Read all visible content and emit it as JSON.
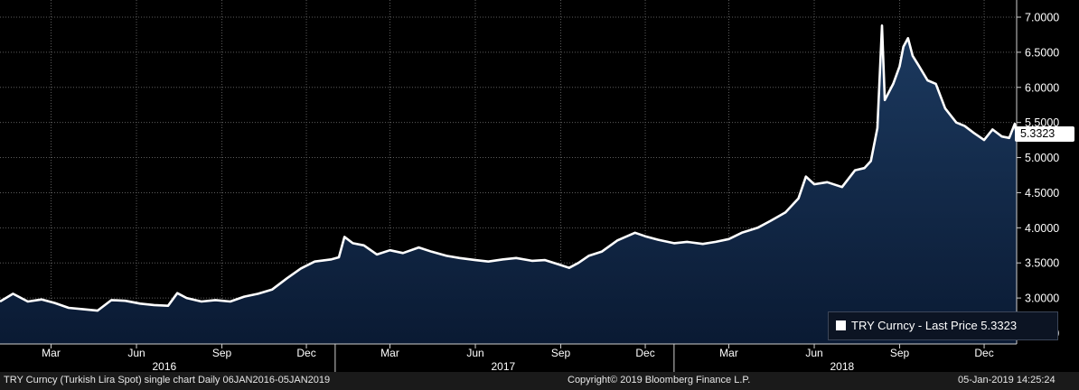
{
  "chart_data": {
    "type": "area",
    "title": "TRY Curncy (Turkish Lira Spot) single chart",
    "series": [
      {
        "name": "TRY Curncy - Last Price 5.3323",
        "last_value": 5.3323
      }
    ],
    "ylim": [
      2.4,
      7.2
    ],
    "y_ticks": [
      2.5,
      3.0,
      3.5,
      4.0,
      4.5,
      5.0,
      5.5,
      6.0,
      6.5,
      7.0
    ],
    "y_tick_labels": [
      "2.5000",
      "3.0000",
      "3.5000",
      "4.0000",
      "4.5000",
      "5.0000",
      "5.5000",
      "6.0000",
      "6.5000",
      "7.0000"
    ],
    "x_range": [
      "2016-01-06",
      "2019-01-05"
    ],
    "month_ticks": [
      {
        "date": "2016-03-01",
        "label": "Mar"
      },
      {
        "date": "2016-06-01",
        "label": "Jun"
      },
      {
        "date": "2016-09-01",
        "label": "Sep"
      },
      {
        "date": "2016-12-01",
        "label": "Dec"
      },
      {
        "date": "2017-03-01",
        "label": "Mar"
      },
      {
        "date": "2017-06-01",
        "label": "Jun"
      },
      {
        "date": "2017-09-01",
        "label": "Sep"
      },
      {
        "date": "2017-12-01",
        "label": "Dec"
      },
      {
        "date": "2018-03-01",
        "label": "Mar"
      },
      {
        "date": "2018-06-01",
        "label": "Jun"
      },
      {
        "date": "2018-09-01",
        "label": "Sep"
      },
      {
        "date": "2018-12-01",
        "label": "Dec"
      }
    ],
    "year_ticks": [
      {
        "date": "2016-07-01",
        "label": "2016"
      },
      {
        "date": "2017-07-01",
        "label": "2017"
      },
      {
        "date": "2018-07-01",
        "label": "2018"
      }
    ],
    "year_separators": [
      "2017-01-01",
      "2018-01-01"
    ],
    "points": [
      [
        "2016-01-06",
        2.95
      ],
      [
        "2016-01-20",
        3.06
      ],
      [
        "2016-02-05",
        2.95
      ],
      [
        "2016-02-20",
        2.98
      ],
      [
        "2016-03-05",
        2.93
      ],
      [
        "2016-03-20",
        2.86
      ],
      [
        "2016-04-05",
        2.84
      ],
      [
        "2016-04-20",
        2.82
      ],
      [
        "2016-05-05",
        2.97
      ],
      [
        "2016-05-20",
        2.96
      ],
      [
        "2016-06-05",
        2.92
      ],
      [
        "2016-06-20",
        2.9
      ],
      [
        "2016-07-05",
        2.89
      ],
      [
        "2016-07-15",
        3.07
      ],
      [
        "2016-07-25",
        3.0
      ],
      [
        "2016-08-10",
        2.95
      ],
      [
        "2016-08-25",
        2.97
      ],
      [
        "2016-09-10",
        2.95
      ],
      [
        "2016-09-25",
        3.02
      ],
      [
        "2016-10-10",
        3.06
      ],
      [
        "2016-10-25",
        3.12
      ],
      [
        "2016-11-10",
        3.28
      ],
      [
        "2016-11-25",
        3.42
      ],
      [
        "2016-12-10",
        3.52
      ],
      [
        "2016-12-28",
        3.55
      ],
      [
        "2017-01-05",
        3.58
      ],
      [
        "2017-01-11",
        3.87
      ],
      [
        "2017-01-20",
        3.78
      ],
      [
        "2017-02-01",
        3.75
      ],
      [
        "2017-02-15",
        3.62
      ],
      [
        "2017-03-01",
        3.68
      ],
      [
        "2017-03-15",
        3.64
      ],
      [
        "2017-04-01",
        3.72
      ],
      [
        "2017-04-15",
        3.66
      ],
      [
        "2017-05-01",
        3.6
      ],
      [
        "2017-05-15",
        3.57
      ],
      [
        "2017-06-01",
        3.54
      ],
      [
        "2017-06-15",
        3.52
      ],
      [
        "2017-07-01",
        3.55
      ],
      [
        "2017-07-15",
        3.57
      ],
      [
        "2017-08-01",
        3.53
      ],
      [
        "2017-08-15",
        3.54
      ],
      [
        "2017-09-01",
        3.47
      ],
      [
        "2017-09-10",
        3.43
      ],
      [
        "2017-09-20",
        3.5
      ],
      [
        "2017-10-01",
        3.6
      ],
      [
        "2017-10-15",
        3.66
      ],
      [
        "2017-11-01",
        3.82
      ],
      [
        "2017-11-20",
        3.93
      ],
      [
        "2017-12-01",
        3.88
      ],
      [
        "2017-12-15",
        3.83
      ],
      [
        "2018-01-01",
        3.78
      ],
      [
        "2018-01-15",
        3.8
      ],
      [
        "2018-02-01",
        3.77
      ],
      [
        "2018-02-15",
        3.8
      ],
      [
        "2018-03-01",
        3.84
      ],
      [
        "2018-03-15",
        3.93
      ],
      [
        "2018-04-01",
        4.0
      ],
      [
        "2018-04-15",
        4.1
      ],
      [
        "2018-05-01",
        4.22
      ],
      [
        "2018-05-15",
        4.42
      ],
      [
        "2018-05-23",
        4.73
      ],
      [
        "2018-06-01",
        4.62
      ],
      [
        "2018-06-15",
        4.65
      ],
      [
        "2018-07-01",
        4.58
      ],
      [
        "2018-07-15",
        4.82
      ],
      [
        "2018-07-25",
        4.85
      ],
      [
        "2018-08-01",
        4.95
      ],
      [
        "2018-08-08",
        5.42
      ],
      [
        "2018-08-13",
        6.88
      ],
      [
        "2018-08-16",
        5.82
      ],
      [
        "2018-08-25",
        6.05
      ],
      [
        "2018-09-01",
        6.3
      ],
      [
        "2018-09-05",
        6.58
      ],
      [
        "2018-09-10",
        6.7
      ],
      [
        "2018-09-15",
        6.45
      ],
      [
        "2018-09-22",
        6.3
      ],
      [
        "2018-10-01",
        6.1
      ],
      [
        "2018-10-10",
        6.05
      ],
      [
        "2018-10-20",
        5.7
      ],
      [
        "2018-11-01",
        5.5
      ],
      [
        "2018-11-10",
        5.45
      ],
      [
        "2018-11-20",
        5.35
      ],
      [
        "2018-12-01",
        5.25
      ],
      [
        "2018-12-10",
        5.4
      ],
      [
        "2018-12-20",
        5.3
      ],
      [
        "2018-12-28",
        5.28
      ],
      [
        "2019-01-03",
        5.48
      ],
      [
        "2019-01-05",
        5.33
      ]
    ]
  },
  "footer": {
    "left": "TRY Curncy (Turkish Lira Spot) single chart  Daily 06JAN2016-05JAN2019",
    "center": "Copyright© 2019 Bloomberg Finance L.P.",
    "right": "05-Jan-2019 14:25:24"
  },
  "last_price_box": "5.3323",
  "legend_text": "TRY Curncy - Last Price 5.3323",
  "colors": {
    "line": "#ffffff",
    "area_top": "#1c3a60",
    "area_bottom": "#0a1a33",
    "grid": "#5a5a5a",
    "background": "#000000"
  }
}
